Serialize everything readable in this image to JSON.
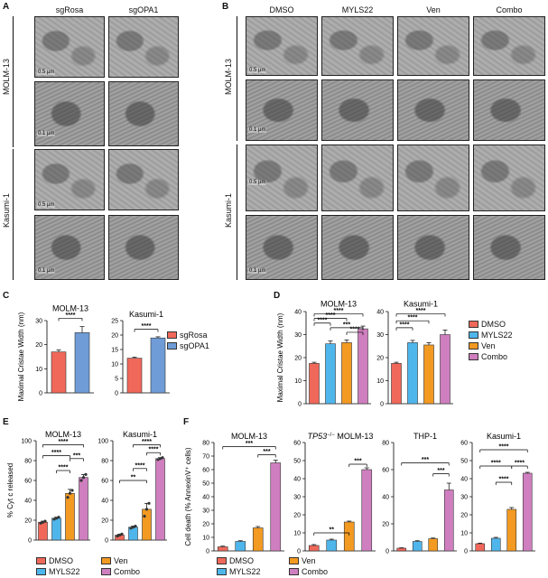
{
  "panels": {
    "a": "A",
    "b": "B",
    "c": "C",
    "d": "D",
    "e": "E",
    "f": "F"
  },
  "panel_a": {
    "columns": [
      "sgRosa",
      "sgOPA1"
    ],
    "rows": [
      "MOLM-13",
      "Kasumi-1"
    ],
    "scale_bars": [
      "0.5 µm",
      "0.1 µm",
      "0.5 µm",
      "0.1 µm"
    ]
  },
  "panel_b": {
    "columns": [
      "DMSO",
      "MYLS22",
      "Ven",
      "Combo"
    ],
    "rows": [
      "MOLM-13",
      "Kasumi-1"
    ],
    "scale_bars": [
      "0.5 µm",
      "0.1 µm",
      "0.5 µm",
      "0.1 µm"
    ]
  },
  "colors": {
    "dmso": "#f0685a",
    "myls22": "#4fb6ec",
    "ven": "#f39a22",
    "combo": "#cf7fbf",
    "sgrosa": "#f0685a",
    "sgopa1": "#6f9cd6"
  },
  "legend_c": [
    "sgRosa",
    "sgOPA1"
  ],
  "legend_d": [
    "DMSO",
    "MYLS22",
    "Ven",
    "Combo"
  ],
  "legend_ef": [
    "DMSO",
    "Ven",
    "MYLS22",
    "Combo"
  ],
  "chart_data": [
    {
      "id": "C1",
      "type": "bar",
      "title": "MOLM-13",
      "ylabel": "Maximal Cristae Width (nm)",
      "categories": [
        "sgRosa",
        "sgOPA1"
      ],
      "values": [
        17,
        25
      ],
      "errors": [
        0.8,
        2.5
      ],
      "ylim": [
        0,
        30
      ],
      "yticks": [
        "0",
        "10",
        "20",
        "30"
      ],
      "sig": [
        "****"
      ]
    },
    {
      "id": "C2",
      "type": "bar",
      "title": "Kasumi-1",
      "categories": [
        "sgRosa",
        "sgOPA1"
      ],
      "values": [
        12,
        19
      ],
      "errors": [
        0.3,
        0.4
      ],
      "ylim": [
        0,
        25
      ],
      "yticks": [
        "0",
        "5",
        "10",
        "15",
        "20",
        "25"
      ],
      "sig": [
        "****"
      ]
    },
    {
      "id": "D1",
      "type": "bar",
      "title": "MOLM-13",
      "ylabel": "Maximal Cristae Width (nm)",
      "categories": [
        "DMSO",
        "MYLS22",
        "Ven",
        "Combo"
      ],
      "values": [
        17.5,
        26,
        26.5,
        32.5
      ],
      "errors": [
        0.5,
        1.2,
        1.2,
        1.2
      ],
      "ylim": [
        0,
        40
      ],
      "yticks": [
        "0",
        "10",
        "20",
        "30",
        "40"
      ],
      "sig": [
        "****",
        "****",
        "****",
        "***",
        "****"
      ]
    },
    {
      "id": "D2",
      "type": "bar",
      "title": "Kasumi-1",
      "categories": [
        "DMSO",
        "MYLS22",
        "Ven",
        "Combo"
      ],
      "values": [
        17.5,
        26.5,
        25.5,
        30
      ],
      "errors": [
        0.5,
        1.0,
        1.0,
        2.0
      ],
      "ylim": [
        0,
        40
      ],
      "yticks": [
        "0",
        "10",
        "20",
        "30",
        "40"
      ],
      "sig": [
        "****",
        "****",
        "****"
      ]
    },
    {
      "id": "E1",
      "type": "bar",
      "title": "MOLM-13",
      "ylabel": "% Cyt c released",
      "categories": [
        "DMSO",
        "MYLS22",
        "Ven",
        "Combo"
      ],
      "values": [
        18,
        22,
        47,
        63
      ],
      "errors": [
        1,
        1,
        4,
        3
      ],
      "points": [
        [
          17,
          18,
          19
        ],
        [
          21,
          22,
          23
        ],
        [
          43,
          47,
          50
        ],
        [
          60,
          63,
          66
        ]
      ],
      "ylim": [
        0,
        100
      ],
      "yticks": [
        "0",
        "20",
        "40",
        "60",
        "80",
        "100"
      ],
      "sig": [
        "****",
        "****",
        "****",
        "***"
      ]
    },
    {
      "id": "E2",
      "type": "bar",
      "title": "Kasumi-1",
      "categories": [
        "DMSO",
        "MYLS22",
        "Ven",
        "Combo"
      ],
      "values": [
        5,
        13,
        31,
        82
      ],
      "errors": [
        1,
        1,
        6,
        1
      ],
      "points": [
        [
          4,
          5,
          6
        ],
        [
          12,
          13,
          14
        ],
        [
          24,
          31,
          37
        ],
        [
          81,
          82,
          83
        ]
      ],
      "ylim": [
        0,
        100
      ],
      "yticks": [
        "0",
        "20",
        "40",
        "60",
        "80",
        "100"
      ],
      "sig": [
        "**",
        "****",
        "****",
        "****"
      ]
    },
    {
      "id": "F1",
      "type": "bar",
      "title": "MOLM-13",
      "ylabel": "Cell death (% AnnexinV⁺ cells)",
      "categories": [
        "DMSO",
        "MYLS22",
        "Ven",
        "Combo"
      ],
      "values": [
        3,
        7,
        17,
        65
      ],
      "errors": [
        0.5,
        0.5,
        1,
        2
      ],
      "ylim": [
        0,
        80
      ],
      "yticks": [
        "0",
        "10",
        "20",
        "30",
        "40",
        "50",
        "60",
        "70",
        "80"
      ],
      "sig": [
        "***",
        "***"
      ]
    },
    {
      "id": "F2",
      "type": "bar",
      "title_prefix": "TP53",
      "title_sup": "−/−",
      "title": " MOLM-13",
      "categories": [
        "DMSO",
        "MYLS22",
        "Ven",
        "Combo"
      ],
      "values": [
        3,
        6,
        16,
        45
      ],
      "errors": [
        0.5,
        0.5,
        0.5,
        1
      ],
      "ylim": [
        0,
        60
      ],
      "yticks": [
        "0",
        "10",
        "20",
        "30",
        "40",
        "50",
        "60"
      ],
      "sig": [
        "**",
        "***"
      ]
    },
    {
      "id": "F3",
      "type": "bar",
      "title": "THP-1",
      "categories": [
        "DMSO",
        "MYLS22",
        "Ven",
        "Combo"
      ],
      "values": [
        2,
        7,
        9,
        45
      ],
      "errors": [
        0.3,
        0.5,
        0.5,
        5
      ],
      "ylim": [
        0,
        80
      ],
      "yticks": [
        "0",
        "20",
        "40",
        "60",
        "80"
      ],
      "sig": [
        "***",
        "***"
      ]
    },
    {
      "id": "F4",
      "type": "bar",
      "title": "Kasumi-1",
      "categories": [
        "DMSO",
        "MYLS22",
        "Ven",
        "Combo"
      ],
      "values": [
        4,
        7,
        23,
        43
      ],
      "errors": [
        0.3,
        0.5,
        1,
        0.5
      ],
      "ylim": [
        0,
        60
      ],
      "yticks": [
        "0",
        "10",
        "20",
        "30",
        "40",
        "50",
        "60"
      ],
      "sig": [
        "****",
        "****",
        "****",
        "****"
      ]
    }
  ]
}
